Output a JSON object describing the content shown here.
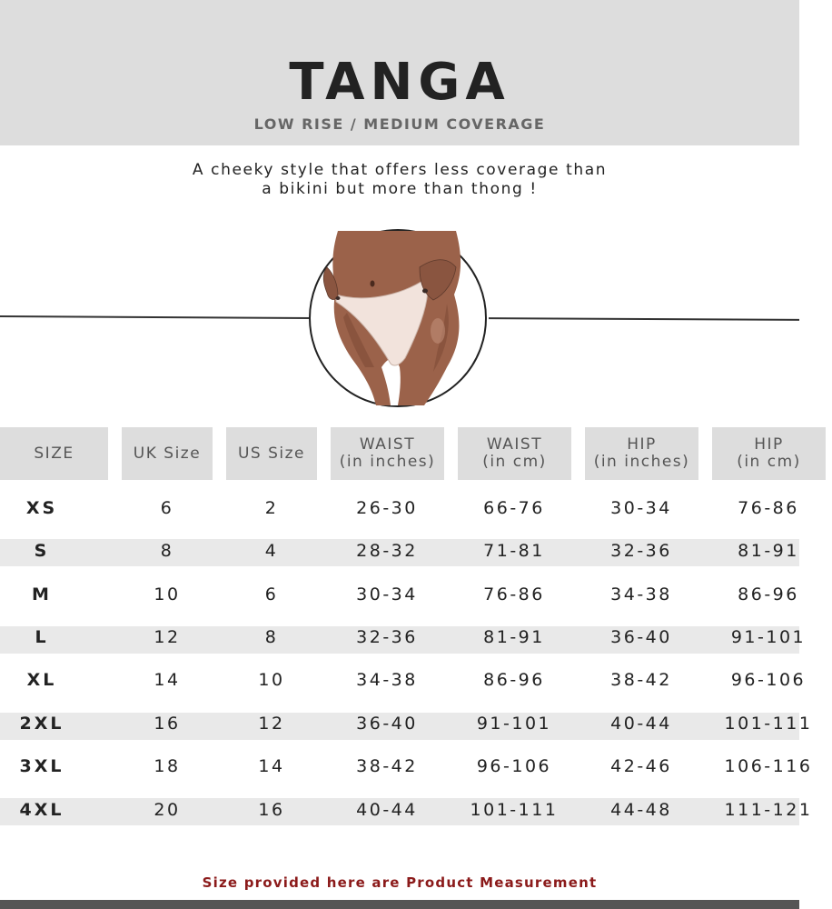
{
  "header": {
    "title": "TANGA",
    "subtitle": "LOW RISE / MEDIUM COVERAGE"
  },
  "description": {
    "line1": "A cheeky style that offers less coverage than",
    "line2": "a bikini but more than thong !"
  },
  "table": {
    "columns": [
      {
        "line1": "SIZE",
        "line2": ""
      },
      {
        "line1": "UK Size",
        "line2": ""
      },
      {
        "line1": "US Size",
        "line2": ""
      },
      {
        "line1": "WAIST",
        "line2": "(in inches)"
      },
      {
        "line1": "WAIST",
        "line2": "(in cm)"
      },
      {
        "line1": "HIP",
        "line2": "(in inches)"
      },
      {
        "line1": "HIP",
        "line2": "(in cm)"
      }
    ],
    "rows": [
      [
        "XS",
        "6",
        "2",
        "26-30",
        "66-76",
        "30-34",
        "76-86"
      ],
      [
        "S",
        "8",
        "4",
        "28-32",
        "71-81",
        "32-36",
        "81-91"
      ],
      [
        "M",
        "10",
        "6",
        "30-34",
        "76-86",
        "34-38",
        "86-96"
      ],
      [
        "L",
        "12",
        "8",
        "32-36",
        "81-91",
        "36-40",
        "91-101"
      ],
      [
        "XL",
        "14",
        "10",
        "34-38",
        "86-96",
        "38-42",
        "96-106"
      ],
      [
        "2XL",
        "16",
        "12",
        "36-40",
        "91-101",
        "40-44",
        "101-111"
      ],
      [
        "3XL",
        "18",
        "14",
        "38-42",
        "96-106",
        "42-46",
        "106-116"
      ],
      [
        "4XL",
        "20",
        "16",
        "40-44",
        "101-111",
        "44-48",
        "111-121"
      ]
    ]
  },
  "note": "Size provided here are Product Measurement",
  "colors": {
    "header_bg": "#dddddd",
    "stripe_bg": "#e9e9e9",
    "note_color": "#8b1a1a"
  },
  "illustration": "tanga-illustration"
}
